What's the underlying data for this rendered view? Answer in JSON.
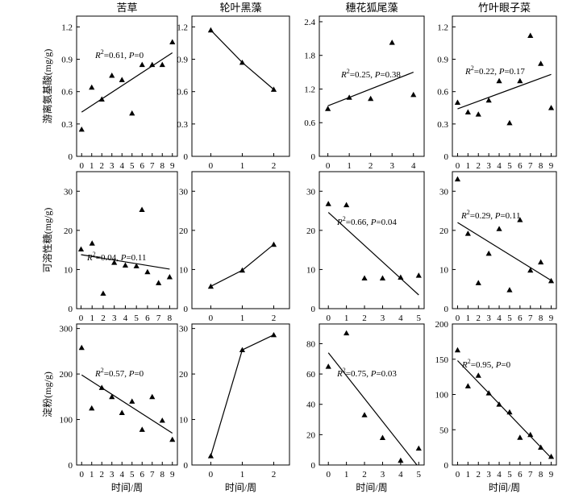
{
  "figure": {
    "column_titles": [
      "苦草",
      "轮叶黑藻",
      "穗花狐尾藻",
      "竹叶眼子菜"
    ],
    "row_ylabels": [
      "游离氨基酸(mg/g)",
      "可溶性糖(mg/g)",
      "淀粉(mg/g)"
    ],
    "xlabel": "时间/周"
  },
  "chart_data": [
    {
      "id": "r1c1",
      "type": "scatter",
      "title": "苦草",
      "ylabel": "游离氨基酸(mg/g)",
      "xlabel": "",
      "xticks": [
        0,
        1,
        2,
        3,
        4,
        5,
        6,
        7,
        8,
        9
      ],
      "yticks": [
        "0",
        "0.3",
        "0.6",
        "0.9",
        "1.2"
      ],
      "xlim": [
        -0.5,
        9.5
      ],
      "ylim": [
        0,
        1.3
      ],
      "x": [
        0,
        1,
        2,
        3,
        4,
        5,
        6,
        7,
        8,
        9
      ],
      "y": [
        0.25,
        0.64,
        0.53,
        0.75,
        0.71,
        0.4,
        0.85,
        0.85,
        0.85,
        1.06
      ],
      "fit": {
        "x0": 0,
        "y0": 0.41,
        "x1": 9,
        "y1": 0.96
      },
      "annotation": {
        "r2": "=0.61, ",
        "p": "=0"
      },
      "marker": "triangle"
    },
    {
      "id": "r1c2",
      "type": "line",
      "title": "轮叶黑藻",
      "ylabel": "",
      "xlabel": "",
      "xticks": [
        0,
        1,
        2
      ],
      "yticks": [
        "0",
        "0.3",
        "0.6",
        "0.9",
        "1.2"
      ],
      "xlim": [
        -0.6,
        2.5
      ],
      "ylim": [
        0,
        1.3
      ],
      "x": [
        0,
        1,
        2
      ],
      "y": [
        1.17,
        0.87,
        0.62
      ],
      "marker": "triangle"
    },
    {
      "id": "r1c3",
      "type": "scatter",
      "title": "穗花狐尾藻",
      "ylabel": "",
      "xlabel": "",
      "xticks": [
        0,
        1,
        2,
        3,
        4
      ],
      "yticks": [
        "0",
        "0.6",
        "1.2",
        "1.8",
        "2.4"
      ],
      "xlim": [
        -0.4,
        4.5
      ],
      "ylim": [
        0,
        2.5
      ],
      "x": [
        0,
        1,
        2,
        3,
        4
      ],
      "y": [
        0.85,
        1.05,
        1.03,
        2.03,
        1.1
      ],
      "fit": {
        "x0": 0,
        "y0": 0.9,
        "x1": 4,
        "y1": 1.5
      },
      "annotation": {
        "r2": "=0.25, ",
        "p": "=0.38"
      },
      "marker": "triangle"
    },
    {
      "id": "r1c4",
      "type": "scatter",
      "title": "竹叶眼子菜",
      "ylabel": "",
      "xlabel": "",
      "xticks": [
        0,
        1,
        2,
        3,
        4,
        5,
        6,
        7,
        8,
        9
      ],
      "yticks": [
        "0",
        "0.3",
        "0.6",
        "0.9",
        "1.2"
      ],
      "xlim": [
        -0.5,
        9.5
      ],
      "ylim": [
        0,
        1.3
      ],
      "x": [
        0,
        1,
        2,
        3,
        4,
        5,
        6,
        7,
        8,
        9
      ],
      "y": [
        0.5,
        0.41,
        0.39,
        0.52,
        0.7,
        0.31,
        0.7,
        1.12,
        0.86,
        0.45
      ],
      "fit": {
        "x0": 0,
        "y0": 0.44,
        "x1": 9,
        "y1": 0.76
      },
      "annotation": {
        "r2": "=0.22, ",
        "p": "=0.17"
      },
      "marker": "triangle"
    },
    {
      "id": "r2c1",
      "type": "scatter",
      "title": "",
      "ylabel": "可溶性糖(mg/g)",
      "xlabel": "",
      "xticks": [
        0,
        1,
        2,
        3,
        4,
        5,
        6,
        7,
        8
      ],
      "yticks": [
        "0",
        "10",
        "20",
        "30"
      ],
      "xlim": [
        -0.4,
        8.7
      ],
      "ylim": [
        0,
        35
      ],
      "x": [
        0,
        1,
        2,
        3,
        4,
        5,
        5.5,
        6,
        7,
        8
      ],
      "y": [
        15.2,
        16.7,
        3.9,
        11.8,
        11.1,
        10.9,
        25.3,
        9.4,
        6.6,
        8.1
      ],
      "fit": {
        "x0": 0,
        "y0": 13.8,
        "x1": 8,
        "y1": 10.1
      },
      "annotation": {
        "r2": "=0.04, ",
        "p": "=0.11"
      },
      "marker": "triangle"
    },
    {
      "id": "r2c2",
      "type": "line",
      "title": "",
      "ylabel": "",
      "xlabel": "",
      "xticks": [
        0,
        1,
        2
      ],
      "yticks": [
        "0",
        "10",
        "20",
        "30"
      ],
      "xlim": [
        -0.6,
        2.5
      ],
      "ylim": [
        0,
        35
      ],
      "x": [
        0,
        1,
        2
      ],
      "y": [
        5.7,
        9.8,
        16.4
      ],
      "marker": "triangle"
    },
    {
      "id": "r2c3",
      "type": "scatter",
      "title": "",
      "ylabel": "",
      "xlabel": "",
      "xticks": [
        0,
        1,
        2,
        3,
        4,
        5
      ],
      "yticks": [
        "0",
        "10",
        "20",
        "30"
      ],
      "xlim": [
        -0.5,
        5.3
      ],
      "ylim": [
        0,
        35
      ],
      "x": [
        0,
        1,
        2,
        3,
        4,
        5
      ],
      "y": [
        26.8,
        26.5,
        7.8,
        7.8,
        8.0,
        8.5
      ],
      "fit": {
        "x0": 0,
        "y0": 24.6,
        "x1": 5,
        "y1": 3.5
      },
      "annotation": {
        "r2": "=0.66, ",
        "p": "=0.04"
      },
      "marker": "triangle"
    },
    {
      "id": "r2c4",
      "type": "scatter",
      "title": "",
      "ylabel": "",
      "xlabel": "",
      "xticks": [
        0,
        1,
        2,
        3,
        4,
        5,
        6,
        7,
        8,
        9
      ],
      "yticks": [
        "0",
        "10",
        "20",
        "30"
      ],
      "xlim": [
        -0.5,
        9.5
      ],
      "ylim": [
        0,
        35
      ],
      "x": [
        0,
        1,
        2,
        3,
        4,
        5,
        6,
        7,
        8,
        9
      ],
      "y": [
        33.1,
        19.2,
        6.6,
        14.1,
        20.4,
        4.8,
        22.7,
        9.8,
        11.9,
        7.1
      ],
      "fit": {
        "x0": 0,
        "y0": 22.0,
        "x1": 9,
        "y1": 7.2
      },
      "annotation": {
        "r2": "=0.29, ",
        "p": "=0.11"
      },
      "marker": "triangle"
    },
    {
      "id": "r3c1",
      "type": "scatter",
      "title": "",
      "ylabel": "淀粉(mg/g)",
      "xlabel": "时间/周",
      "xticks": [
        0,
        1,
        2,
        3,
        4,
        5,
        6,
        7,
        8,
        9
      ],
      "yticks": [
        "0",
        "100",
        "200",
        "300"
      ],
      "xlim": [
        -0.5,
        9.5
      ],
      "ylim": [
        0,
        310
      ],
      "x": [
        0,
        1,
        2,
        3,
        4,
        5,
        6,
        7,
        8,
        9
      ],
      "y": [
        258,
        125,
        170,
        150,
        115,
        140,
        78,
        150,
        98,
        56
      ],
      "fit": {
        "x0": 0,
        "y0": 198,
        "x1": 9,
        "y1": 70
      },
      "annotation": {
        "r2": "=0.57, ",
        "p": "=0"
      },
      "marker": "triangle"
    },
    {
      "id": "r3c2",
      "type": "line",
      "title": "",
      "ylabel": "",
      "xlabel": "时间/周",
      "xticks": [
        0,
        1,
        2
      ],
      "yticks": [
        "0",
        "10",
        "20",
        "30"
      ],
      "xlim": [
        -0.6,
        2.5
      ],
      "ylim": [
        0,
        31
      ],
      "x": [
        0,
        1,
        2
      ],
      "y": [
        2.0,
        25.3,
        28.6
      ],
      "marker": "triangle"
    },
    {
      "id": "r3c3",
      "type": "scatter",
      "title": "",
      "ylabel": "",
      "xlabel": "时间/周",
      "xticks": [
        0,
        1,
        2,
        3,
        4,
        5
      ],
      "yticks": [
        "0",
        "20",
        "40",
        "60",
        "80"
      ],
      "xlim": [
        -0.5,
        5.3
      ],
      "ylim": [
        0,
        93
      ],
      "x": [
        0,
        1,
        2,
        3,
        4,
        5
      ],
      "y": [
        65,
        87,
        33,
        18,
        3,
        11
      ],
      "fit": {
        "x0": 0,
        "y0": 74,
        "x1": 4.9,
        "y1": 0
      },
      "annotation": {
        "r2": "=0.75, ",
        "p": "=0.03"
      },
      "marker": "triangle"
    },
    {
      "id": "r3c4",
      "type": "scatter",
      "title": "",
      "ylabel": "",
      "xlabel": "时间/周",
      "xticks": [
        0,
        1,
        2,
        3,
        4,
        5,
        6,
        7,
        8,
        9
      ],
      "yticks": [
        "0",
        "50",
        "100",
        "150",
        "200"
      ],
      "xlim": [
        -0.5,
        9.5
      ],
      "ylim": [
        0,
        200
      ],
      "x": [
        0,
        1,
        2,
        3,
        4,
        5,
        6,
        7,
        8,
        9
      ],
      "y": [
        163,
        112,
        127,
        102,
        86,
        75,
        39,
        43,
        25,
        12
      ],
      "fit": {
        "x0": 0,
        "y0": 148,
        "x1": 9,
        "y1": 10
      },
      "annotation": {
        "r2": "=0.95, ",
        "p": "=0"
      },
      "marker": "triangle"
    }
  ]
}
